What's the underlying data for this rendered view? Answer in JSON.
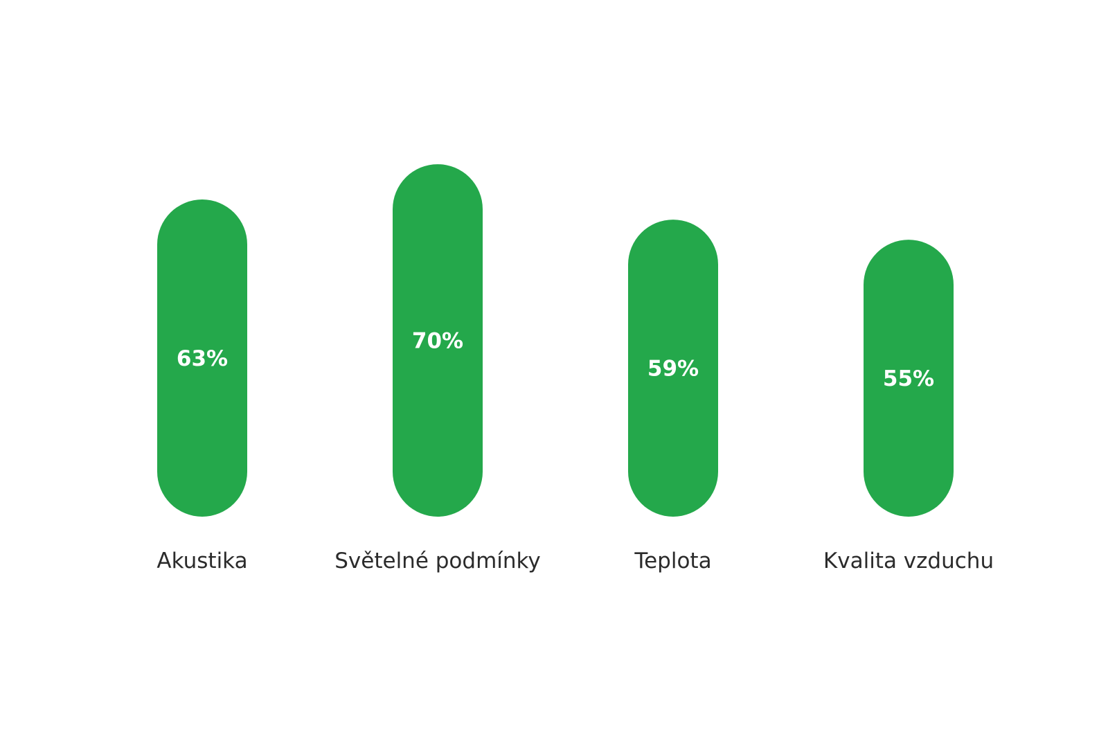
{
  "chart_data": {
    "type": "bar",
    "categories": [
      "Akustika",
      "Světelné podmínky",
      "Teplota",
      "Kvalita vzduchu"
    ],
    "values": [
      63,
      70,
      59,
      55
    ],
    "value_labels": [
      "63%",
      "70%",
      "59%",
      "55%"
    ],
    "ylim": [
      0,
      100
    ],
    "grid": false,
    "bar_color": "#24a84b"
  }
}
